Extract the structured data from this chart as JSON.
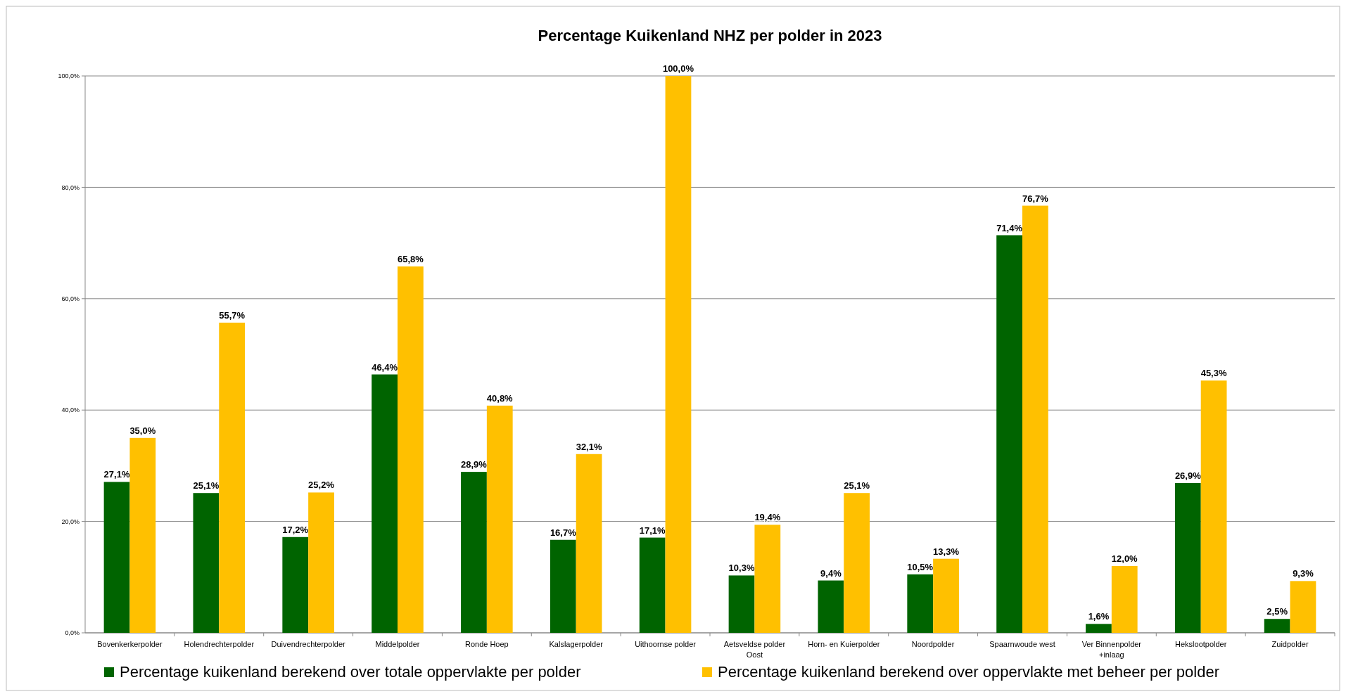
{
  "chart_data": {
    "type": "bar",
    "title": "Percentage Kuikenland NHZ per polder in 2023",
    "categories": [
      "Bovenkerkerpolder",
      "Holendrechterpolder",
      "Duivendrechterpolder",
      "Middelpolder",
      "Ronde Hoep",
      "Kalslagerpolder",
      "Uithoornse polder",
      "Aetsveldse polder Oost",
      "Horn- en Kuierpolder",
      "Noordpolder",
      "Spaarnwoude west",
      "Ver Binnenpolder +inlaag",
      "Hekslootpolder",
      "Zuidpolder"
    ],
    "series": [
      {
        "name": "Percentage kuikenland berekend over totale oppervlakte per polder",
        "color": "#006400",
        "values": [
          27.1,
          25.1,
          17.2,
          46.4,
          28.9,
          16.7,
          17.1,
          10.3,
          9.4,
          10.5,
          71.4,
          1.6,
          26.9,
          2.5
        ],
        "value_labels": [
          "27,1%",
          "25,1%",
          "17,2%",
          "46,4%",
          "28,9%",
          "16,7%",
          "17,1%",
          "10,3%",
          "9,4%",
          "10,5%",
          "71,4%",
          "1,6%",
          "26,9%",
          "2,5%"
        ]
      },
      {
        "name": "Percentage kuikenland berekend over oppervlakte met beheer per polder",
        "color": "#ffc000",
        "values": [
          35.0,
          55.7,
          25.2,
          65.8,
          40.8,
          32.1,
          100.0,
          19.4,
          25.1,
          13.3,
          76.7,
          12.0,
          45.3,
          9.3
        ],
        "value_labels": [
          "35,0%",
          "55,7%",
          "25,2%",
          "65,8%",
          "40,8%",
          "32,1%",
          "100,0%",
          "19,4%",
          "25,1%",
          "13,3%",
          "76,7%",
          "12,0%",
          "45,3%",
          "9,3%"
        ]
      }
    ],
    "ylim": [
      0,
      100
    ],
    "yticks": [
      {
        "value": 0,
        "label": "0,0%"
      },
      {
        "value": 20,
        "label": "20,0%"
      },
      {
        "value": 40,
        "label": "40,0%"
      },
      {
        "value": 60,
        "label": "60,0%"
      },
      {
        "value": 80,
        "label": "80,0%"
      },
      {
        "value": 100,
        "label": "100,0%"
      }
    ],
    "grid": "y",
    "legend": "bottom"
  }
}
